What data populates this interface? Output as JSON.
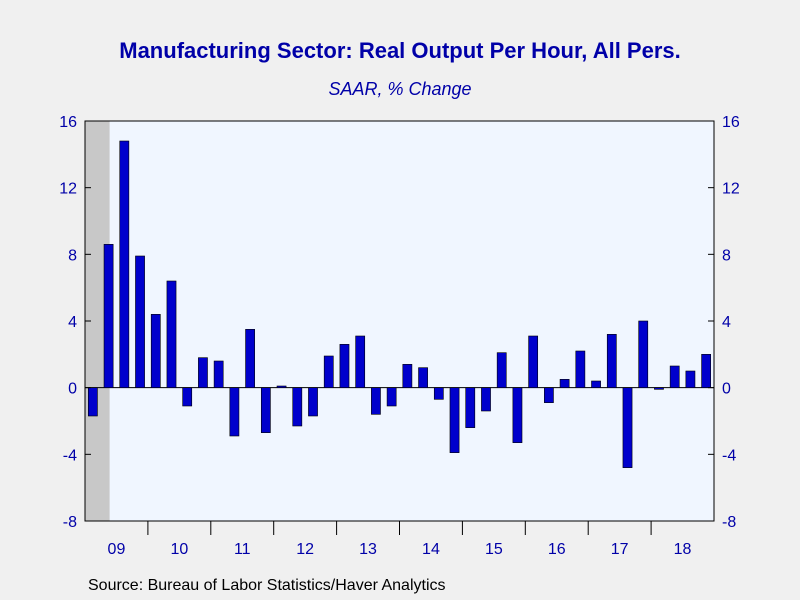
{
  "chart_data": {
    "type": "bar",
    "title": "Manufacturing Sector: Real Output Per Hour, All Pers.",
    "subtitle": "SAAR, % Change",
    "source": "Source:  Bureau of Labor Statistics/Haver Analytics",
    "ylim": [
      -8,
      16
    ],
    "yticks": [
      -8,
      -4,
      0,
      4,
      8,
      12,
      16
    ],
    "ytick_labels": [
      "-8",
      "-4",
      "0",
      "4",
      "8",
      "12",
      "16"
    ],
    "year_labels": [
      "09",
      "10",
      "11",
      "12",
      "13",
      "14",
      "15",
      "16",
      "17",
      "18"
    ],
    "categories": [
      "2009Q1",
      "2009Q2",
      "2009Q3",
      "2009Q4",
      "2010Q1",
      "2010Q2",
      "2010Q3",
      "2010Q4",
      "2011Q1",
      "2011Q2",
      "2011Q3",
      "2011Q4",
      "2012Q1",
      "2012Q2",
      "2012Q3",
      "2012Q4",
      "2013Q1",
      "2013Q2",
      "2013Q3",
      "2013Q4",
      "2014Q1",
      "2014Q2",
      "2014Q3",
      "2014Q4",
      "2015Q1",
      "2015Q2",
      "2015Q3",
      "2015Q4",
      "2016Q1",
      "2016Q2",
      "2016Q3",
      "2016Q4",
      "2017Q1",
      "2017Q2",
      "2017Q3",
      "2017Q4",
      "2018Q1",
      "2018Q2",
      "2018Q3",
      "2018Q4"
    ],
    "values": [
      -1.7,
      8.6,
      14.8,
      7.9,
      4.4,
      6.4,
      -1.1,
      1.8,
      1.6,
      -2.9,
      3.5,
      -2.7,
      0.1,
      -2.3,
      -1.7,
      1.9,
      2.6,
      3.1,
      -1.6,
      -1.1,
      1.4,
      1.2,
      -0.7,
      -3.9,
      -2.4,
      -1.4,
      2.1,
      -3.3,
      3.1,
      -0.9,
      0.5,
      2.2,
      0.4,
      3.2,
      -4.8,
      4.0,
      -0.1,
      1.3,
      1.0,
      2.0
    ],
    "recession_shading": {
      "start": "2009Q1",
      "end": "2009Q2"
    },
    "grid": false,
    "colors": {
      "bar_fill": "#0000cc",
      "bar_stroke": "#000000",
      "plot_background": "#f0f6ff",
      "recession_fill": "#c8c8c8",
      "axis_text": "#0000a8",
      "page_background": "#f0f0f0"
    }
  }
}
